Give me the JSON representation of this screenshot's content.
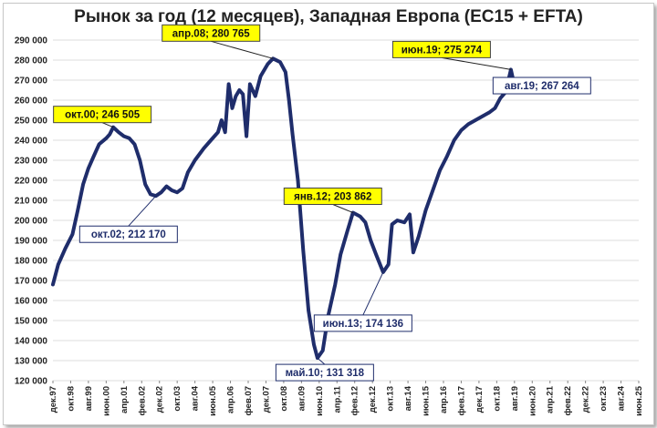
{
  "chart_data": {
    "type": "line",
    "title": "Рынок за год (12 месяцев), Западная Европа (EC15 + EFTA)",
    "xlabel": "",
    "ylabel": "",
    "ylim": [
      120000,
      290000
    ],
    "y_ticks": [
      "120 000",
      "130 000",
      "140 000",
      "150 000",
      "160 000",
      "170 000",
      "180 000",
      "190 000",
      "200 000",
      "210 000",
      "220 000",
      "230 000",
      "240 000",
      "250 000",
      "260 000",
      "270 000",
      "280 000",
      "290 000"
    ],
    "x_range": [
      "1997-12",
      "2025-06"
    ],
    "x_ticks": [
      {
        "date": "1997-12",
        "label": "дек.97"
      },
      {
        "date": "1998-10",
        "label": "окт.98"
      },
      {
        "date": "1999-08",
        "label": "авг.99"
      },
      {
        "date": "2000-06",
        "label": "июн.00"
      },
      {
        "date": "2001-04",
        "label": "апр.01"
      },
      {
        "date": "2002-02",
        "label": "фев.02"
      },
      {
        "date": "2002-12",
        "label": "дек.02"
      },
      {
        "date": "2003-10",
        "label": "окт.03"
      },
      {
        "date": "2004-08",
        "label": "авг.04"
      },
      {
        "date": "2005-06",
        "label": "июн.05"
      },
      {
        "date": "2006-04",
        "label": "апр.06"
      },
      {
        "date": "2007-02",
        "label": "фев.07"
      },
      {
        "date": "2007-12",
        "label": "дек.07"
      },
      {
        "date": "2008-10",
        "label": "окт.08"
      },
      {
        "date": "2009-08",
        "label": "авг.09"
      },
      {
        "date": "2010-06",
        "label": "июн.10"
      },
      {
        "date": "2011-04",
        "label": "апр.11"
      },
      {
        "date": "2012-02",
        "label": "фев.12"
      },
      {
        "date": "2012-12",
        "label": "дек.12"
      },
      {
        "date": "2013-10",
        "label": "окт.13"
      },
      {
        "date": "2014-08",
        "label": "авг.14"
      },
      {
        "date": "2015-06",
        "label": "июн.15"
      },
      {
        "date": "2016-04",
        "label": "апр.16"
      },
      {
        "date": "2017-02",
        "label": "фев.17"
      },
      {
        "date": "2017-12",
        "label": "дек.17"
      },
      {
        "date": "2018-10",
        "label": "окт.18"
      },
      {
        "date": "2019-08",
        "label": "авг.19"
      },
      {
        "date": "2020-06",
        "label": "июн.20"
      },
      {
        "date": "2021-04",
        "label": "апр.21"
      },
      {
        "date": "2022-02",
        "label": "фев.22"
      },
      {
        "date": "2022-12",
        "label": "дек.22"
      },
      {
        "date": "2023-10",
        "label": "окт.23"
      },
      {
        "date": "2024-08",
        "label": "авг.24"
      },
      {
        "date": "2025-06",
        "label": "июн.25"
      }
    ],
    "grid": true,
    "legend": "none",
    "line_color": "#1f2d6b",
    "series": [
      {
        "points": [
          [
            "1997-12",
            168000
          ],
          [
            "1998-03",
            178000
          ],
          [
            "1998-07",
            186000
          ],
          [
            "1998-11",
            193000
          ],
          [
            "1999-02",
            205000
          ],
          [
            "1999-05",
            218000
          ],
          [
            "1999-08",
            226000
          ],
          [
            "1999-11",
            232000
          ],
          [
            "2000-02",
            238000
          ],
          [
            "2000-06",
            241000
          ],
          [
            "2000-08",
            243000
          ],
          [
            "2000-10",
            246505
          ],
          [
            "2001-01",
            244000
          ],
          [
            "2001-04",
            242000
          ],
          [
            "2001-07",
            241000
          ],
          [
            "2001-10",
            238000
          ],
          [
            "2002-01",
            230000
          ],
          [
            "2002-04",
            218000
          ],
          [
            "2002-07",
            213000
          ],
          [
            "2002-10",
            212170
          ],
          [
            "2003-01",
            214000
          ],
          [
            "2003-04",
            217000
          ],
          [
            "2003-07",
            215000
          ],
          [
            "2003-10",
            214000
          ],
          [
            "2004-01",
            216000
          ],
          [
            "2004-04",
            224000
          ],
          [
            "2004-08",
            230000
          ],
          [
            "2005-01",
            236000
          ],
          [
            "2005-05",
            240000
          ],
          [
            "2005-09",
            244000
          ],
          [
            "2005-11",
            250000
          ],
          [
            "2006-01",
            244000
          ],
          [
            "2006-03",
            268000
          ],
          [
            "2006-05",
            256000
          ],
          [
            "2006-07",
            262000
          ],
          [
            "2006-09",
            265000
          ],
          [
            "2006-11",
            263000
          ],
          [
            "2007-01",
            242000
          ],
          [
            "2007-03",
            268000
          ],
          [
            "2007-06",
            262000
          ],
          [
            "2007-09",
            272000
          ],
          [
            "2008-01",
            278000
          ],
          [
            "2008-04",
            280765
          ],
          [
            "2008-08",
            279000
          ],
          [
            "2008-11",
            274000
          ],
          [
            "2009-01",
            260000
          ],
          [
            "2009-03",
            243000
          ],
          [
            "2009-06",
            220000
          ],
          [
            "2009-09",
            185000
          ],
          [
            "2009-12",
            155000
          ],
          [
            "2010-03",
            138000
          ],
          [
            "2010-05",
            131318
          ],
          [
            "2010-08",
            135000
          ],
          [
            "2010-11",
            152000
          ],
          [
            "2011-03",
            168000
          ],
          [
            "2011-06",
            183000
          ],
          [
            "2011-10",
            195000
          ],
          [
            "2012-01",
            203862
          ],
          [
            "2012-05",
            202000
          ],
          [
            "2012-08",
            199000
          ],
          [
            "2012-11",
            190000
          ],
          [
            "2013-02",
            183000
          ],
          [
            "2013-06",
            174136
          ],
          [
            "2013-09",
            178000
          ],
          [
            "2013-11",
            198000
          ],
          [
            "2014-02",
            200000
          ],
          [
            "2014-06",
            199000
          ],
          [
            "2014-09",
            203000
          ],
          [
            "2014-11",
            184000
          ],
          [
            "2015-02",
            192000
          ],
          [
            "2015-06",
            205000
          ],
          [
            "2015-10",
            215000
          ],
          [
            "2016-02",
            225000
          ],
          [
            "2016-06",
            232000
          ],
          [
            "2016-10",
            240000
          ],
          [
            "2017-02",
            245000
          ],
          [
            "2017-06",
            248000
          ],
          [
            "2017-10",
            250000
          ],
          [
            "2018-02",
            252000
          ],
          [
            "2018-06",
            254000
          ],
          [
            "2018-09",
            256000
          ],
          [
            "2018-12",
            261000
          ],
          [
            "2019-03",
            264000
          ],
          [
            "2019-06",
            275274
          ],
          [
            "2019-08",
            267264
          ]
        ]
      }
    ],
    "annotations": [
      {
        "text": "окт.00; 246 505",
        "date": "2000-10",
        "value": 246505,
        "style": "yellow"
      },
      {
        "text": "окт.02; 212 170",
        "date": "2002-10",
        "value": 212170,
        "style": "white"
      },
      {
        "text": "апр.08; 280 765",
        "date": "2008-04",
        "value": 280765,
        "style": "yellow"
      },
      {
        "text": "май.10; 131 318",
        "date": "2010-05",
        "value": 131318,
        "style": "white"
      },
      {
        "text": "янв.12; 203 862",
        "date": "2012-01",
        "value": 203862,
        "style": "yellow"
      },
      {
        "text": "июн.13; 174 136",
        "date": "2013-06",
        "value": 174136,
        "style": "white"
      },
      {
        "text": "июн.19; 275 274",
        "date": "2019-06",
        "value": 275274,
        "style": "yellow"
      },
      {
        "text": "авг.19; 267 264",
        "date": "2019-08",
        "value": 267264,
        "style": "white"
      }
    ]
  }
}
